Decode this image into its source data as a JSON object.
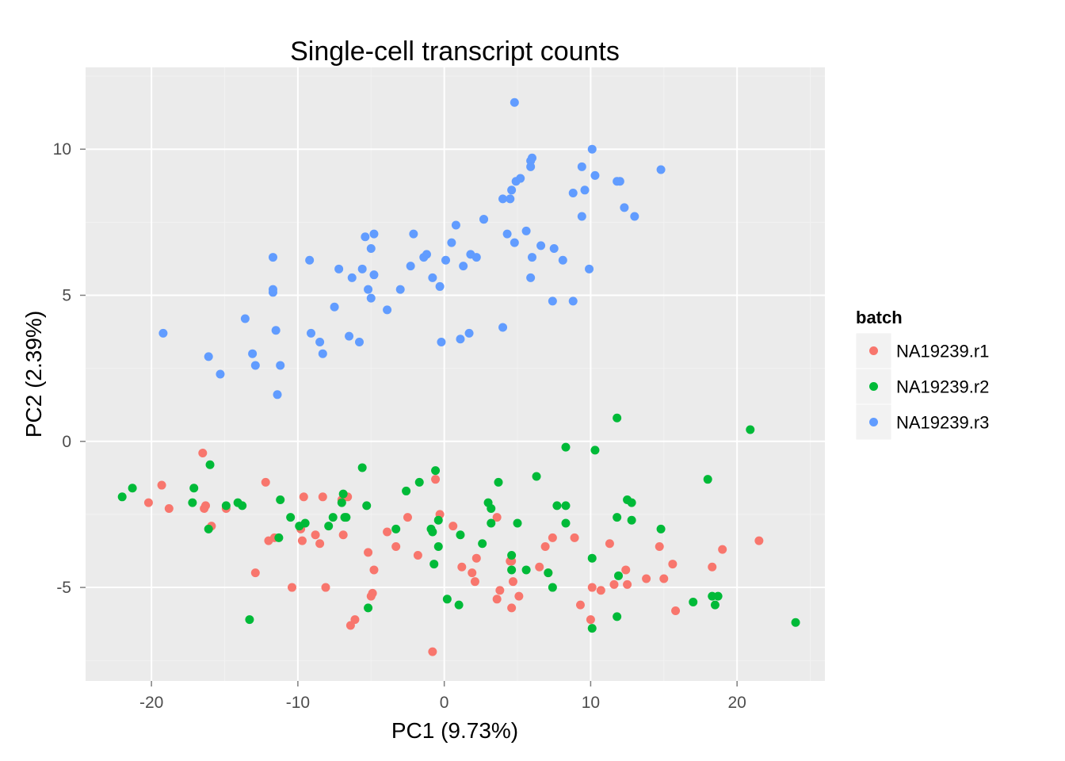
{
  "chart_data": {
    "type": "scatter",
    "title": "Single-cell transcript counts",
    "xlabel": "PC1 (9.73%)",
    "ylabel": "PC2 (2.39%)",
    "xlim": [
      -24.5,
      26
    ],
    "ylim": [
      -8.2,
      12.8
    ],
    "xticks": [
      -20,
      -10,
      0,
      10,
      20
    ],
    "xtick_labels": [
      "-20",
      "-10",
      "0",
      "10",
      "20"
    ],
    "yticks": [
      -5,
      0,
      5,
      10
    ],
    "ytick_labels": [
      "-5",
      "0",
      "5",
      "10"
    ],
    "legend_position": "right",
    "legend": {
      "title": "batch"
    },
    "grid": true,
    "series": [
      {
        "name": "NA19239.r1",
        "color": "#F8766D",
        "points": [
          [
            -20.2,
            -2.1
          ],
          [
            -19.3,
            -1.5
          ],
          [
            -18.8,
            -2.3
          ],
          [
            -16.5,
            -0.4
          ],
          [
            -16.3,
            -2.2
          ],
          [
            -16.4,
            -2.3
          ],
          [
            -15.9,
            -2.9
          ],
          [
            -14.9,
            -2.3
          ],
          [
            -12.9,
            -4.5
          ],
          [
            -12.2,
            -1.4
          ],
          [
            -12.0,
            -3.4
          ],
          [
            -11.6,
            -3.3
          ],
          [
            -10.4,
            -5.0
          ],
          [
            -9.8,
            -3.0
          ],
          [
            -9.7,
            -3.4
          ],
          [
            -9.6,
            -1.9
          ],
          [
            -8.8,
            -3.2
          ],
          [
            -8.5,
            -3.5
          ],
          [
            -8.3,
            -1.9
          ],
          [
            -8.1,
            -5.0
          ],
          [
            -7.0,
            -2.0
          ],
          [
            -6.9,
            -3.2
          ],
          [
            -6.6,
            -1.9
          ],
          [
            -6.4,
            -6.3
          ],
          [
            -6.1,
            -6.1
          ],
          [
            -5.2,
            -3.8
          ],
          [
            -4.8,
            -4.4
          ],
          [
            -5.0,
            -5.3
          ],
          [
            -4.9,
            -5.2
          ],
          [
            -3.9,
            -3.1
          ],
          [
            -3.3,
            -3.6
          ],
          [
            -2.5,
            -2.6
          ],
          [
            -1.8,
            -3.9
          ],
          [
            -0.8,
            -7.2
          ],
          [
            -0.6,
            -1.3
          ],
          [
            -0.3,
            -2.5
          ],
          [
            0.6,
            -2.9
          ],
          [
            1.2,
            -4.3
          ],
          [
            1.9,
            -4.5
          ],
          [
            2.1,
            -4.8
          ],
          [
            2.2,
            -4.0
          ],
          [
            3.6,
            -2.6
          ],
          [
            3.6,
            -5.4
          ],
          [
            3.8,
            -5.1
          ],
          [
            4.5,
            -4.1
          ],
          [
            4.6,
            -4.1
          ],
          [
            4.7,
            -4.8
          ],
          [
            4.6,
            -5.7
          ],
          [
            5.1,
            -5.3
          ],
          [
            6.5,
            -4.3
          ],
          [
            6.9,
            -3.6
          ],
          [
            7.1,
            -4.5
          ],
          [
            7.4,
            -3.3
          ],
          [
            8.9,
            -3.3
          ],
          [
            9.3,
            -5.6
          ],
          [
            10.0,
            -6.1
          ],
          [
            10.1,
            -5.0
          ],
          [
            10.7,
            -5.1
          ],
          [
            11.3,
            -3.5
          ],
          [
            11.6,
            -4.9
          ],
          [
            12.4,
            -4.4
          ],
          [
            12.5,
            -4.9
          ],
          [
            13.8,
            -4.7
          ],
          [
            14.7,
            -3.6
          ],
          [
            15.0,
            -4.7
          ],
          [
            15.6,
            -4.2
          ],
          [
            15.8,
            -5.8
          ],
          [
            18.3,
            -4.3
          ],
          [
            19.0,
            -3.7
          ],
          [
            21.5,
            -3.4
          ]
        ]
      },
      {
        "name": "NA19239.r2",
        "color": "#00BA38",
        "points": [
          [
            -22.0,
            -1.9
          ],
          [
            -21.3,
            -1.6
          ],
          [
            -17.1,
            -1.6
          ],
          [
            -17.2,
            -2.1
          ],
          [
            -16.0,
            -0.8
          ],
          [
            -16.1,
            -3.0
          ],
          [
            -14.9,
            -2.2
          ],
          [
            -14.1,
            -2.1
          ],
          [
            -13.8,
            -2.2
          ],
          [
            -13.3,
            -6.1
          ],
          [
            -11.3,
            -3.3
          ],
          [
            -11.2,
            -2.0
          ],
          [
            -10.5,
            -2.6
          ],
          [
            -9.9,
            -2.9
          ],
          [
            -9.5,
            -2.8
          ],
          [
            -7.9,
            -2.9
          ],
          [
            -7.6,
            -2.6
          ],
          [
            -7.0,
            -2.1
          ],
          [
            -6.9,
            -1.8
          ],
          [
            -6.8,
            -2.6
          ],
          [
            -6.7,
            -2.6
          ],
          [
            -5.6,
            -0.9
          ],
          [
            -5.3,
            -2.2
          ],
          [
            -5.2,
            -5.7
          ],
          [
            -3.3,
            -3.0
          ],
          [
            -2.6,
            -1.7
          ],
          [
            -1.7,
            -1.4
          ],
          [
            -0.9,
            -3.0
          ],
          [
            -0.8,
            -3.1
          ],
          [
            -0.7,
            -4.2
          ],
          [
            -0.6,
            -1.0
          ],
          [
            -0.4,
            -2.7
          ],
          [
            -0.4,
            -3.6
          ],
          [
            0.2,
            -5.4
          ],
          [
            1.1,
            -3.2
          ],
          [
            1.0,
            -5.6
          ],
          [
            2.6,
            -3.5
          ],
          [
            3.0,
            -2.1
          ],
          [
            3.2,
            -2.3
          ],
          [
            3.2,
            -2.8
          ],
          [
            3.7,
            -1.4
          ],
          [
            4.6,
            -4.4
          ],
          [
            4.6,
            -3.9
          ],
          [
            5.0,
            -2.8
          ],
          [
            6.3,
            -1.2
          ],
          [
            7.1,
            -4.5
          ],
          [
            7.4,
            -5.0
          ],
          [
            7.7,
            -2.2
          ],
          [
            8.3,
            -2.2
          ],
          [
            8.3,
            -2.8
          ],
          [
            8.3,
            -0.2
          ],
          [
            10.1,
            -4.0
          ],
          [
            10.3,
            -0.3
          ],
          [
            11.8,
            0.8
          ],
          [
            11.8,
            -2.6
          ],
          [
            11.9,
            -4.6
          ],
          [
            11.8,
            -6.0
          ],
          [
            12.5,
            -2.0
          ],
          [
            12.8,
            -2.1
          ],
          [
            12.8,
            -2.7
          ],
          [
            14.8,
            -3.0
          ],
          [
            17.0,
            -5.5
          ],
          [
            18.0,
            -1.3
          ],
          [
            18.3,
            -5.3
          ],
          [
            18.5,
            -5.6
          ],
          [
            18.7,
            -5.3
          ],
          [
            20.9,
            0.4
          ],
          [
            24.0,
            -6.2
          ],
          [
            10.1,
            -6.4
          ],
          [
            5.6,
            -4.4
          ]
        ]
      },
      {
        "name": "NA19239.r3",
        "color": "#619CFF",
        "points": [
          [
            -19.2,
            3.7
          ],
          [
            -16.1,
            2.9
          ],
          [
            -15.3,
            2.3
          ],
          [
            -13.6,
            4.2
          ],
          [
            -13.1,
            3.0
          ],
          [
            -12.9,
            2.6
          ],
          [
            -11.7,
            6.3
          ],
          [
            -11.7,
            5.2
          ],
          [
            -11.7,
            5.1
          ],
          [
            -11.5,
            3.8
          ],
          [
            -11.4,
            1.6
          ],
          [
            -11.2,
            2.6
          ],
          [
            -9.2,
            6.2
          ],
          [
            -9.1,
            3.7
          ],
          [
            -8.5,
            3.4
          ],
          [
            -8.3,
            3.0
          ],
          [
            -7.5,
            4.6
          ],
          [
            -7.2,
            5.9
          ],
          [
            -6.5,
            3.6
          ],
          [
            -6.3,
            5.6
          ],
          [
            -5.8,
            3.4
          ],
          [
            -5.6,
            5.9
          ],
          [
            -5.4,
            7.0
          ],
          [
            -5.2,
            5.2
          ],
          [
            -5.0,
            6.6
          ],
          [
            -5.0,
            4.9
          ],
          [
            -4.8,
            7.1
          ],
          [
            -4.8,
            5.7
          ],
          [
            -3.9,
            4.5
          ],
          [
            -3.0,
            5.2
          ],
          [
            -2.3,
            6.0
          ],
          [
            -2.1,
            7.1
          ],
          [
            -1.4,
            6.3
          ],
          [
            -1.2,
            6.4
          ],
          [
            -0.8,
            5.6
          ],
          [
            -0.3,
            5.3
          ],
          [
            -0.2,
            3.4
          ],
          [
            0.1,
            6.2
          ],
          [
            0.5,
            6.8
          ],
          [
            0.8,
            7.4
          ],
          [
            1.1,
            3.5
          ],
          [
            1.3,
            6.0
          ],
          [
            1.7,
            3.7
          ],
          [
            1.8,
            6.4
          ],
          [
            2.2,
            6.3
          ],
          [
            2.7,
            7.6
          ],
          [
            2.7,
            7.6
          ],
          [
            4.0,
            3.9
          ],
          [
            4.0,
            8.3
          ],
          [
            4.3,
            7.1
          ],
          [
            4.5,
            8.3
          ],
          [
            4.6,
            8.6
          ],
          [
            4.8,
            6.8
          ],
          [
            4.8,
            11.6
          ],
          [
            4.9,
            8.9
          ],
          [
            5.2,
            9.0
          ],
          [
            5.6,
            7.2
          ],
          [
            5.9,
            9.4
          ],
          [
            5.9,
            9.6
          ],
          [
            5.9,
            5.6
          ],
          [
            6.0,
            9.7
          ],
          [
            6.0,
            6.3
          ],
          [
            6.6,
            6.7
          ],
          [
            7.4,
            4.8
          ],
          [
            7.5,
            6.6
          ],
          [
            8.1,
            6.2
          ],
          [
            8.8,
            4.8
          ],
          [
            8.8,
            8.5
          ],
          [
            9.4,
            7.7
          ],
          [
            9.4,
            9.4
          ],
          [
            9.6,
            8.6
          ],
          [
            9.9,
            5.9
          ],
          [
            10.1,
            10.0
          ],
          [
            10.3,
            9.1
          ],
          [
            11.8,
            8.9
          ],
          [
            12.0,
            8.9
          ],
          [
            12.3,
            8.0
          ],
          [
            13.0,
            7.7
          ],
          [
            14.8,
            9.3
          ]
        ]
      }
    ]
  }
}
